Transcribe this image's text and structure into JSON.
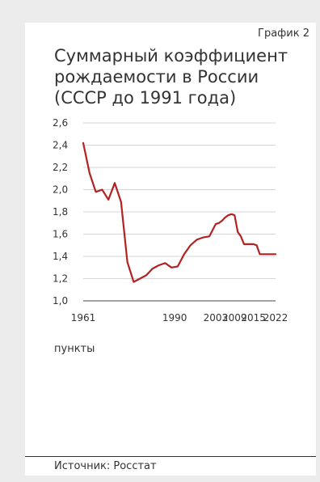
{
  "header": {
    "badge": "График 2",
    "title": "Суммарный коэффициент\nрождаемости в России\n(СССР до 1991 года)"
  },
  "footer": {
    "source": "Источник: Росстат"
  },
  "chart_data": {
    "type": "line",
    "title": "Суммарный коэффициент рождаемости в России (СССР до 1991 года)",
    "xlabel": "",
    "ylabel": "пункты",
    "xlim": [
      1961,
      2022
    ],
    "ylim": [
      1.0,
      2.6
    ],
    "x_ticks": [
      "1961",
      "1990",
      "2003",
      "2009",
      "2015",
      "2022"
    ],
    "y_ticks": [
      "1,0",
      "1,2",
      "1,4",
      "1,6",
      "1,8",
      "2,0",
      "2,2",
      "2,4",
      "2,6"
    ],
    "grid": true,
    "color": "#b22222",
    "series": [
      {
        "name": "",
        "x": [
          1961,
          1963,
          1965,
          1967,
          1969,
          1971,
          1973,
          1975,
          1977,
          1979,
          1981,
          1983,
          1985,
          1987,
          1989,
          1991,
          1993,
          1995,
          1997,
          1999,
          2001,
          2003,
          2004,
          2005,
          2006,
          2007,
          2008,
          2009,
          2010,
          2011,
          2012,
          2013,
          2014,
          2015,
          2016,
          2017,
          2018,
          2019,
          2020,
          2021,
          2022
        ],
        "y": [
          2.42,
          2.15,
          1.98,
          2.0,
          1.91,
          2.06,
          1.89,
          1.35,
          1.17,
          1.2,
          1.23,
          1.29,
          1.32,
          1.34,
          1.3,
          1.31,
          1.42,
          1.5,
          1.55,
          1.57,
          1.58,
          1.69,
          1.7,
          1.72,
          1.75,
          1.77,
          1.78,
          1.77,
          1.62,
          1.58,
          1.51,
          1.51,
          1.51,
          1.51,
          1.5,
          1.42,
          1.42,
          1.42,
          1.42,
          1.42,
          1.42
        ]
      }
    ]
  }
}
